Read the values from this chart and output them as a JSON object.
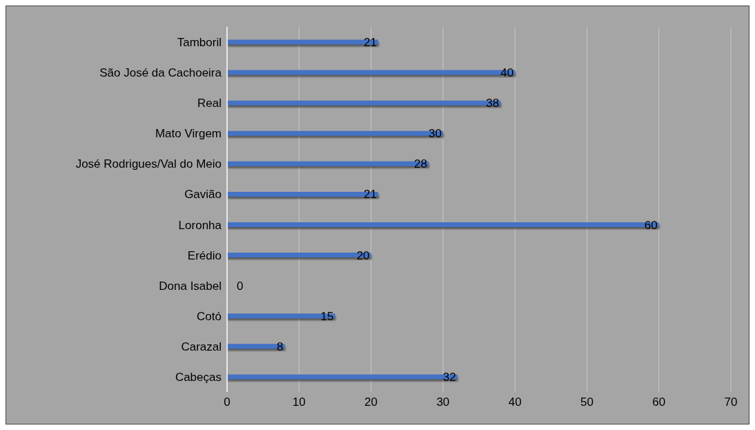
{
  "chart_data": {
    "type": "bar",
    "orientation": "horizontal",
    "categories": [
      "Tamboril",
      "São José da Cachoeira",
      "Real",
      "Mato Virgem",
      "José Rodrigues/Val do Meio",
      "Gavião",
      "Loronha",
      "Erédio",
      "Dona Isabel",
      "Cotó",
      "Carazal",
      "Cabeças"
    ],
    "values": [
      21,
      40,
      38,
      30,
      28,
      21,
      60,
      20,
      0,
      15,
      8,
      32
    ],
    "color": "#4472c4",
    "xlim": [
      0,
      70
    ],
    "xticks": [
      0,
      10,
      20,
      30,
      40,
      50,
      60,
      70
    ],
    "grid": "x",
    "data_labels": true
  }
}
